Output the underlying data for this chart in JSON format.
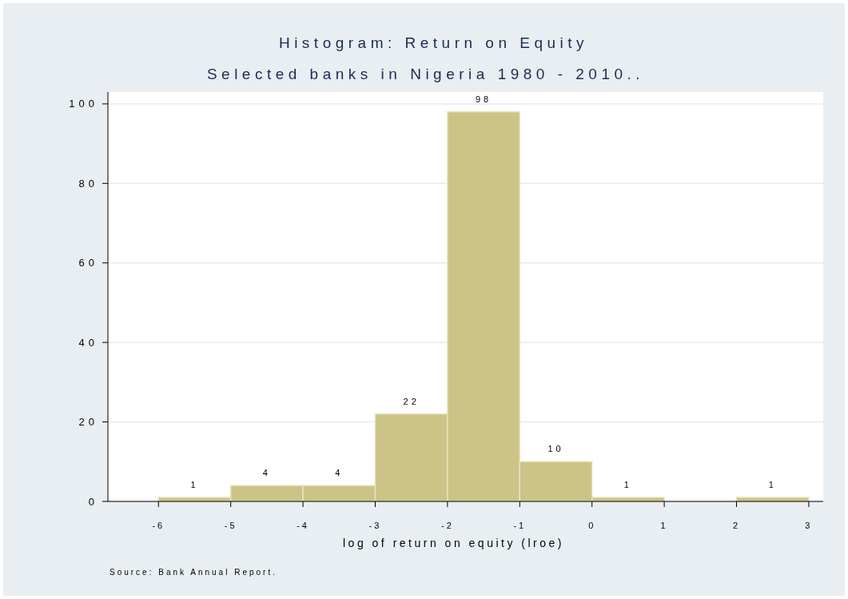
{
  "chart_data": {
    "type": "histogram",
    "title": "Histogram: Return on Equity",
    "subtitle": "Selected banks in Nigeria 1980 - 2010..",
    "xlabel": "log of return on equity (lroe)",
    "bins": [
      -6,
      -5,
      -4,
      -3,
      -2,
      -1,
      0,
      1,
      2,
      3
    ],
    "values": [
      1,
      4,
      4,
      22,
      98,
      10,
      1,
      0,
      1
    ],
    "value_labels": [
      "1",
      "4",
      "4",
      "22",
      "98",
      "10",
      "1",
      null,
      "1"
    ],
    "color": "#cbc486",
    "xlim": [
      -6.7,
      3.2
    ],
    "xticks": [
      -6,
      -5,
      -4,
      -3,
      -2,
      -1,
      0,
      1,
      2,
      3
    ],
    "ylim": [
      0,
      103
    ],
    "yticks": [
      0,
      20,
      40,
      60,
      80,
      100
    ],
    "grid": "y",
    "annotations": [
      "Source: Bank Annual Report."
    ]
  }
}
